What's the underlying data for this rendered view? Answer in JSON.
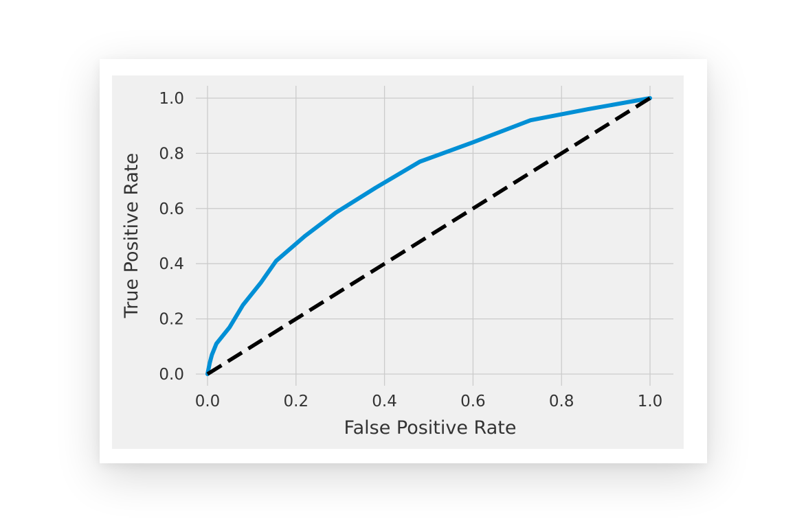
{
  "chart_data": {
    "type": "line",
    "xlabel": "False Positive Rate",
    "ylabel": "True Positive Rate",
    "xlim": [
      0.0,
      1.0
    ],
    "ylim": [
      0.0,
      1.0
    ],
    "xticks": [
      "0.0",
      "0.2",
      "0.4",
      "0.6",
      "0.8",
      "1.0"
    ],
    "yticks": [
      "0.0",
      "0.2",
      "0.4",
      "0.6",
      "0.8",
      "1.0"
    ],
    "grid": true,
    "legend": "none",
    "series": [
      {
        "color": "#008fd5",
        "style": "solid",
        "x": [
          0.0,
          0.005,
          0.01,
          0.02,
          0.05,
          0.08,
          0.12,
          0.155,
          0.22,
          0.29,
          0.38,
          0.48,
          0.6,
          0.73,
          0.86,
          1.0
        ],
        "y": [
          0.0,
          0.04,
          0.07,
          0.11,
          0.17,
          0.25,
          0.33,
          0.41,
          0.5,
          0.585,
          0.675,
          0.77,
          0.84,
          0.92,
          0.96,
          1.0
        ]
      },
      {
        "color": "#000000",
        "style": "dashed",
        "x": [
          0.0,
          1.0
        ],
        "y": [
          0.0,
          1.0
        ]
      }
    ]
  }
}
